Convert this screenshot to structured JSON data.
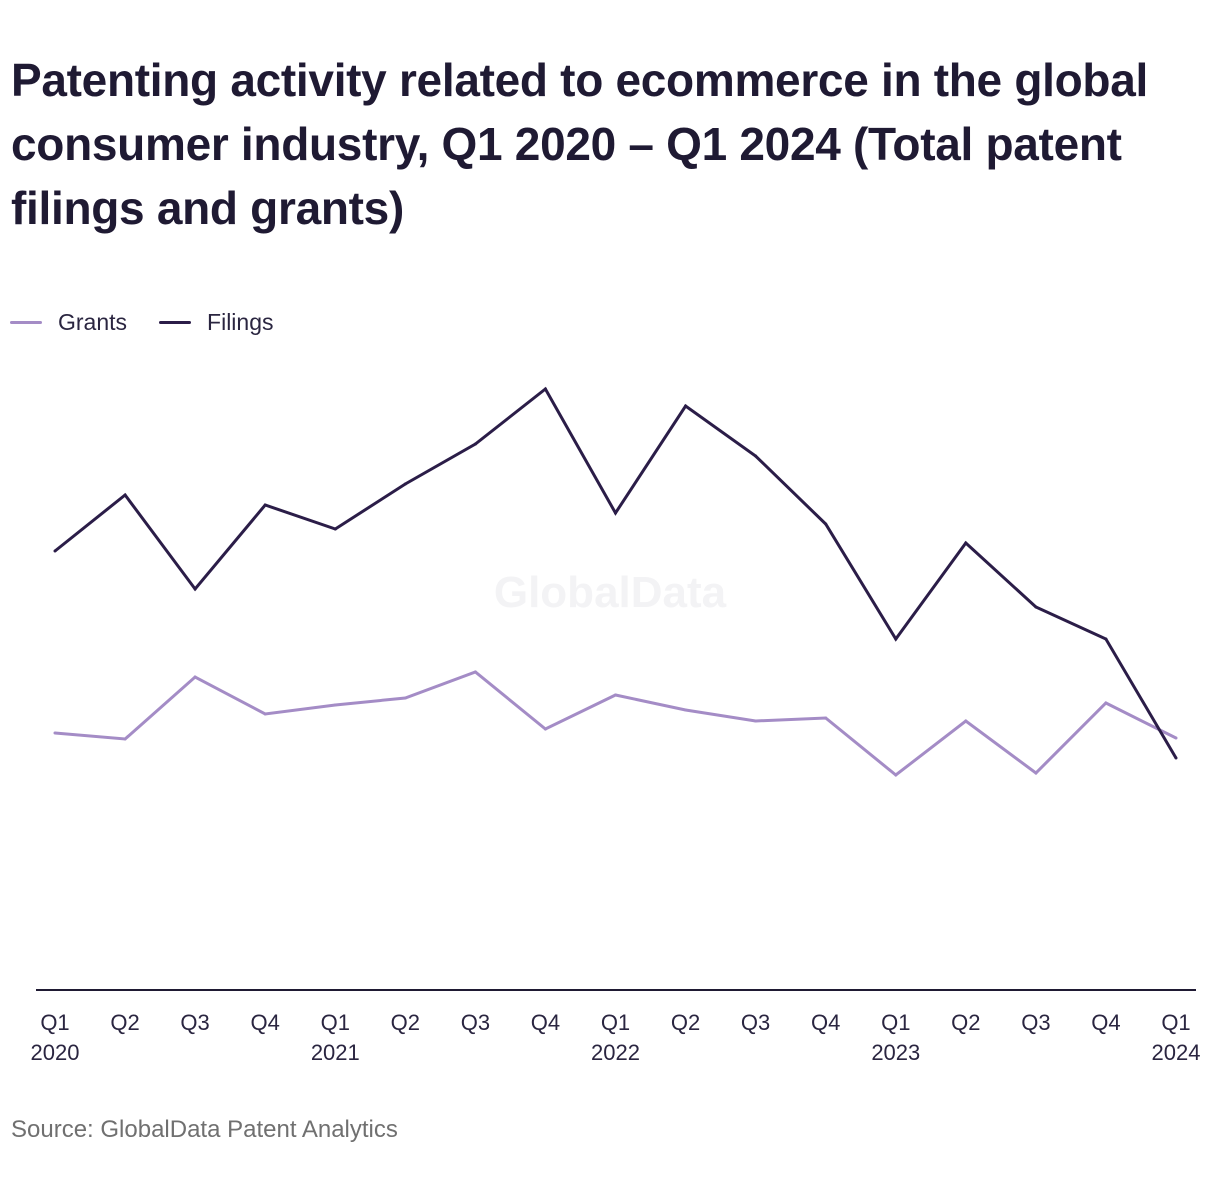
{
  "title": "Patenting activity related to ecommerce in the global consumer industry, Q1 2020 – Q1 2024 (Total patent filings and grants)",
  "watermark": "GlobalData",
  "source": "Source: GlobalData Patent Analytics",
  "colors": {
    "grants": "#a48cc6",
    "filings": "#2b1d48",
    "axis": "#1f1a33"
  },
  "chart_data": {
    "type": "line",
    "title": "Patenting activity related to ecommerce in the global consumer industry, Q1 2020 – Q1 2024 (Total patent filings and grants)",
    "xlabel": "",
    "ylabel": "",
    "ylim": [
      0,
      600
    ],
    "grid": false,
    "legend": "top-left",
    "categories": [
      "Q1 2020",
      "Q2 2020",
      "Q3 2020",
      "Q4 2020",
      "Q1 2021",
      "Q2 2021",
      "Q3 2021",
      "Q4 2021",
      "Q1 2022",
      "Q2 2022",
      "Q3 2022",
      "Q4 2022",
      "Q1 2023",
      "Q2 2023",
      "Q3 2023",
      "Q4 2023",
      "Q1 2024"
    ],
    "tick_labels": [
      {
        "q": "Q1",
        "year": "2020"
      },
      {
        "q": "Q2",
        "year": ""
      },
      {
        "q": "Q3",
        "year": ""
      },
      {
        "q": "Q4",
        "year": ""
      },
      {
        "q": "Q1",
        "year": "2021"
      },
      {
        "q": "Q2",
        "year": ""
      },
      {
        "q": "Q3",
        "year": ""
      },
      {
        "q": "Q4",
        "year": ""
      },
      {
        "q": "Q1",
        "year": "2022"
      },
      {
        "q": "Q2",
        "year": ""
      },
      {
        "q": "Q3",
        "year": ""
      },
      {
        "q": "Q4",
        "year": ""
      },
      {
        "q": "Q1",
        "year": "2023"
      },
      {
        "q": "Q2",
        "year": ""
      },
      {
        "q": "Q3",
        "year": ""
      },
      {
        "q": "Q4",
        "year": ""
      },
      {
        "q": "Q1",
        "year": "2024"
      }
    ],
    "series": [
      {
        "name": "Grants",
        "values": [
          257,
          251,
          313,
          276,
          285,
          292,
          318,
          261,
          295,
          280,
          269,
          272,
          215,
          269,
          217,
          287,
          252
        ]
      },
      {
        "name": "Filings",
        "values": [
          439,
          495,
          401,
          485,
          461,
          506,
          546,
          601,
          477,
          584,
          534,
          466,
          351,
          447,
          383,
          351,
          232
        ]
      }
    ]
  }
}
